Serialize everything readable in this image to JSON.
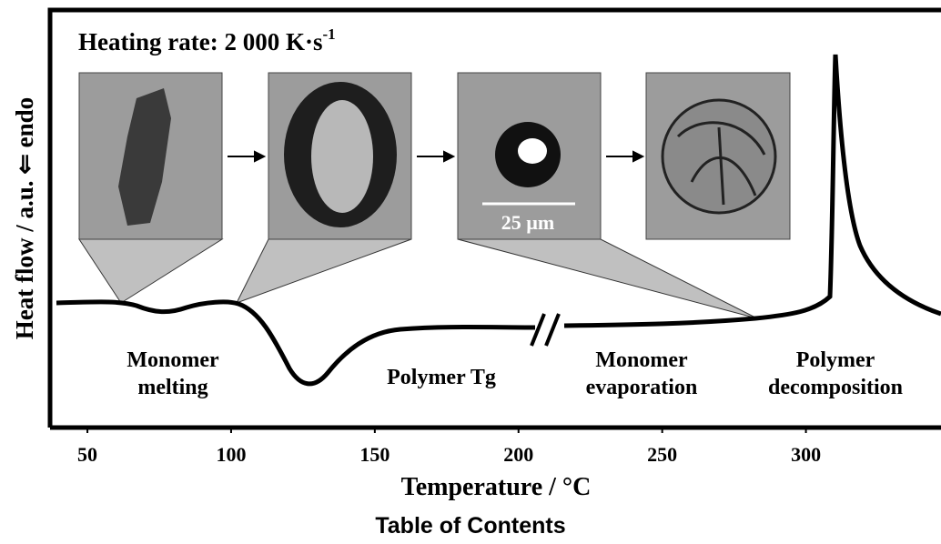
{
  "chart_data": {
    "type": "line",
    "title": "Heating rate: 2 000 K·s",
    "title_superscript": "-1",
    "x_label": "Temperature / °C",
    "y_label": "Heat flow / a.u. ⇐ endo",
    "xlim": [
      37,
      347
    ],
    "xticks": [
      50,
      100,
      150,
      200,
      250,
      300
    ],
    "scale_bar_label": "25 µm",
    "annotations": [
      {
        "lines": [
          "Monomer",
          "melting"
        ]
      },
      {
        "lines": [
          "Polymer Tg"
        ]
      },
      {
        "lines": [
          "Monomer",
          "evaporation"
        ]
      },
      {
        "lines": [
          "Polymer",
          "decomposition"
        ]
      }
    ]
  },
  "caption": "Table of Contents"
}
